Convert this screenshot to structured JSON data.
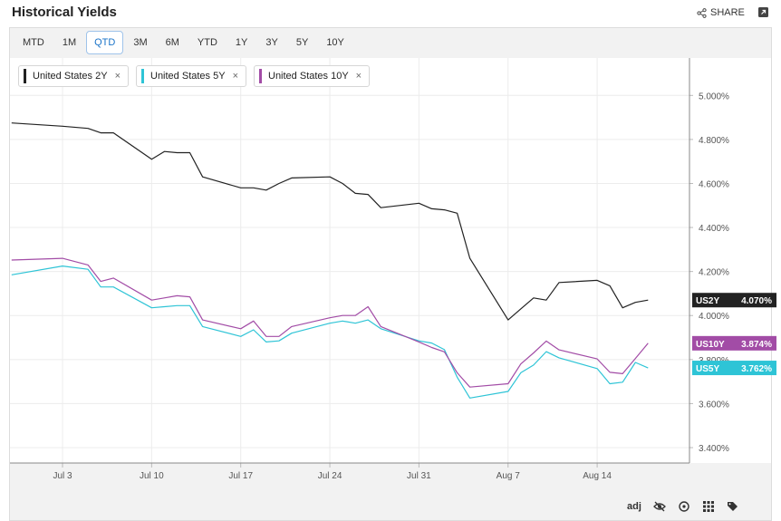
{
  "header": {
    "title": "Historical Yields",
    "share_label": "SHARE"
  },
  "ranges": [
    "MTD",
    "1M",
    "QTD",
    "3M",
    "6M",
    "YTD",
    "1Y",
    "3Y",
    "5Y",
    "10Y"
  ],
  "active_range": "QTD",
  "legend": [
    {
      "label": "United States 2Y",
      "color": "#222222"
    },
    {
      "label": "United States 5Y",
      "color": "#2ec4d6"
    },
    {
      "label": "United States 10Y",
      "color": "#a24ca6"
    }
  ],
  "tools": {
    "adj_label": "adj"
  },
  "chart_data": {
    "type": "line",
    "x_tick_labels": [
      "Jul 3",
      "Jul 10",
      "Jul 17",
      "Jul 24",
      "Jul 31",
      "Aug 7",
      "Aug 14"
    ],
    "y_tick_labels": [
      "3.400%",
      "3.600%",
      "3.800%",
      "4.000%",
      "4.200%",
      "4.400%",
      "4.600%",
      "4.800%",
      "5.000%"
    ],
    "ylim": [
      3.33,
      5.17
    ],
    "yticks": [
      3.4,
      3.6,
      3.8,
      4.0,
      4.2,
      4.4,
      4.6,
      4.8,
      5.0
    ],
    "x_dates": [
      "Jun 30",
      "Jul 3",
      "Jul 5",
      "Jul 6",
      "Jul 7",
      "Jul 10",
      "Jul 11",
      "Jul 12",
      "Jul 13",
      "Jul 14",
      "Jul 17",
      "Jul 18",
      "Jul 19",
      "Jul 20",
      "Jul 21",
      "Jul 24",
      "Jul 25",
      "Jul 26",
      "Jul 27",
      "Jul 28",
      "Jul 31",
      "Aug 1",
      "Aug 2",
      "Aug 3",
      "Aug 4",
      "Aug 7",
      "Aug 8",
      "Aug 9",
      "Aug 10",
      "Aug 11",
      "Aug 14",
      "Aug 15",
      "Aug 16",
      "Aug 17",
      "Aug 18"
    ],
    "series": [
      {
        "name": "US2Y",
        "color": "#222222",
        "values": [
          4.875,
          4.86,
          4.85,
          4.83,
          4.83,
          4.71,
          4.745,
          4.74,
          4.74,
          4.63,
          4.58,
          4.58,
          4.57,
          4.6,
          4.625,
          4.63,
          4.6,
          4.555,
          4.55,
          4.49,
          4.51,
          4.485,
          4.48,
          4.465,
          4.26,
          3.98,
          4.03,
          4.08,
          4.07,
          4.15,
          4.16,
          4.135,
          4.035,
          4.06,
          4.07
        ]
      },
      {
        "name": "US5Y",
        "color": "#2ec4d6",
        "values": [
          4.185,
          4.225,
          4.21,
          4.13,
          4.13,
          4.035,
          4.04,
          4.045,
          4.045,
          3.95,
          3.905,
          3.935,
          3.88,
          3.885,
          3.92,
          3.965,
          3.975,
          3.965,
          3.98,
          3.94,
          3.885,
          3.875,
          3.845,
          3.72,
          3.625,
          3.655,
          3.74,
          3.775,
          3.836,
          3.808,
          3.759,
          3.69,
          3.697,
          3.787,
          3.762
        ]
      },
      {
        "name": "US10Y",
        "color": "#a24ca6",
        "values": [
          4.252,
          4.26,
          4.23,
          4.155,
          4.17,
          4.07,
          4.08,
          4.09,
          4.085,
          3.98,
          3.94,
          3.975,
          3.905,
          3.905,
          3.95,
          3.99,
          4.0,
          4.0,
          4.04,
          3.95,
          3.88,
          3.855,
          3.835,
          3.74,
          3.675,
          3.69,
          3.78,
          3.83,
          3.884,
          3.844,
          3.803,
          3.742,
          3.736,
          3.805,
          3.874
        ]
      }
    ],
    "last_values": [
      {
        "tag": "US2Y",
        "value": "4.070%",
        "bg": "#222222"
      },
      {
        "tag": "US10Y",
        "value": "3.874%",
        "bg": "#a24ca6"
      },
      {
        "tag": "US5Y",
        "value": "3.762%",
        "bg": "#2ec4d6"
      }
    ],
    "grid": true
  }
}
